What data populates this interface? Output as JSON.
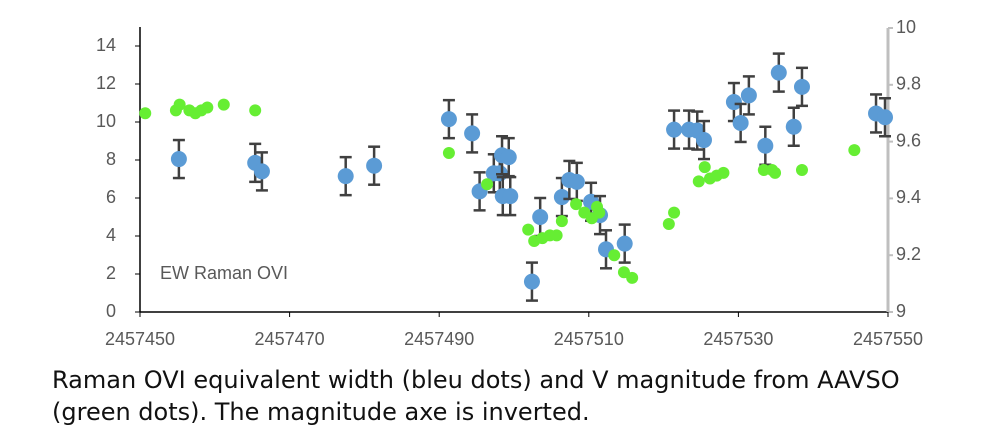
{
  "chart_data": {
    "type": "scatter",
    "annotation": "EW Raman OVI",
    "caption": [
      "Raman OVI equivalent width (bleu dots) and V magnitude from AAVSO",
      "(green dots). The magnitude axe is inverted."
    ],
    "xlim": [
      2457450,
      2457550
    ],
    "xticks": [
      2457450,
      2457470,
      2457490,
      2457510,
      2457530,
      2457550
    ],
    "ylim": [
      0,
      15
    ],
    "yticks": [
      0,
      2,
      4,
      6,
      8,
      10,
      12,
      14
    ],
    "y2lim": [
      9,
      10
    ],
    "y2ticks": [
      9,
      9.2,
      9.4,
      9.6,
      9.8,
      10
    ],
    "series": [
      {
        "color": "#5b9bd5",
        "x": [
          2457455.2,
          2457465.4,
          2457466.3,
          2457477.5,
          2457481.3,
          2457491.3,
          2457494.4,
          2457495.4,
          2457497.3,
          2457498.1,
          2457498.4,
          2457499.3,
          2457498.5,
          2457499.5,
          2457502.4,
          2457503.5,
          2457506.4,
          2457507.4,
          2457508.4,
          2457510.3,
          2457511.5,
          2457512.3,
          2457514.8,
          2457521.4,
          2457523.4,
          2457524.5,
          2457525.4,
          2457529.4,
          2457530.3,
          2457531.4,
          2457533.6,
          2457535.4,
          2457537.4,
          2457538.5,
          2457548.4,
          2457549.6
        ],
        "values": [
          8.05,
          7.85,
          7.4,
          7.15,
          7.7,
          10.15,
          9.4,
          6.35,
          7.3,
          7.3,
          8.25,
          8.15,
          6.1,
          6.1,
          1.6,
          5.0,
          6.05,
          6.95,
          6.85,
          5.8,
          5.1,
          3.3,
          3.6,
          9.6,
          9.6,
          9.55,
          9.05,
          11.05,
          9.95,
          11.4,
          8.75,
          12.6,
          9.75,
          11.85,
          10.45,
          10.25
        ],
        "errors": [
          1,
          1,
          1,
          1,
          1,
          1,
          1,
          1,
          1,
          1,
          1,
          1,
          1,
          1,
          1,
          1,
          1,
          1,
          1,
          1,
          1,
          1,
          1,
          1,
          1,
          1,
          1,
          1,
          1,
          1,
          1,
          1,
          1,
          1,
          1,
          1
        ]
      },
      {
        "color": "#66ee33",
        "axis": "y2",
        "x": [
          2457450.7,
          2457454.8,
          2457455.3,
          2457456.6,
          2457457.4,
          2457458.2,
          2457459.0,
          2457461.2,
          2457465.4,
          2457491.3,
          2457496.4,
          2457501.9,
          2457502.7,
          2457503.8,
          2457504.8,
          2457505.7,
          2457506.4,
          2457508.3,
          2457509.4,
          2457510.4,
          2457511.1,
          2457511.4,
          2457513.4,
          2457514.7,
          2457515.8,
          2457520.7,
          2457521.4,
          2457524.7,
          2457525.5,
          2457526.2,
          2457527.1,
          2457528.0,
          2457533.4,
          2457534.5,
          2457534.9,
          2457538.5,
          2457545.5
        ],
        "values": [
          9.7,
          9.71,
          9.73,
          9.71,
          9.7,
          9.71,
          9.72,
          9.73,
          9.71,
          9.56,
          9.45,
          9.29,
          9.25,
          9.26,
          9.27,
          9.27,
          9.32,
          9.38,
          9.35,
          9.33,
          9.37,
          9.35,
          9.2,
          9.14,
          9.12,
          9.31,
          9.35,
          9.46,
          9.51,
          9.47,
          9.48,
          9.49,
          9.5,
          9.5,
          9.49,
          9.5,
          9.57
        ]
      }
    ]
  }
}
